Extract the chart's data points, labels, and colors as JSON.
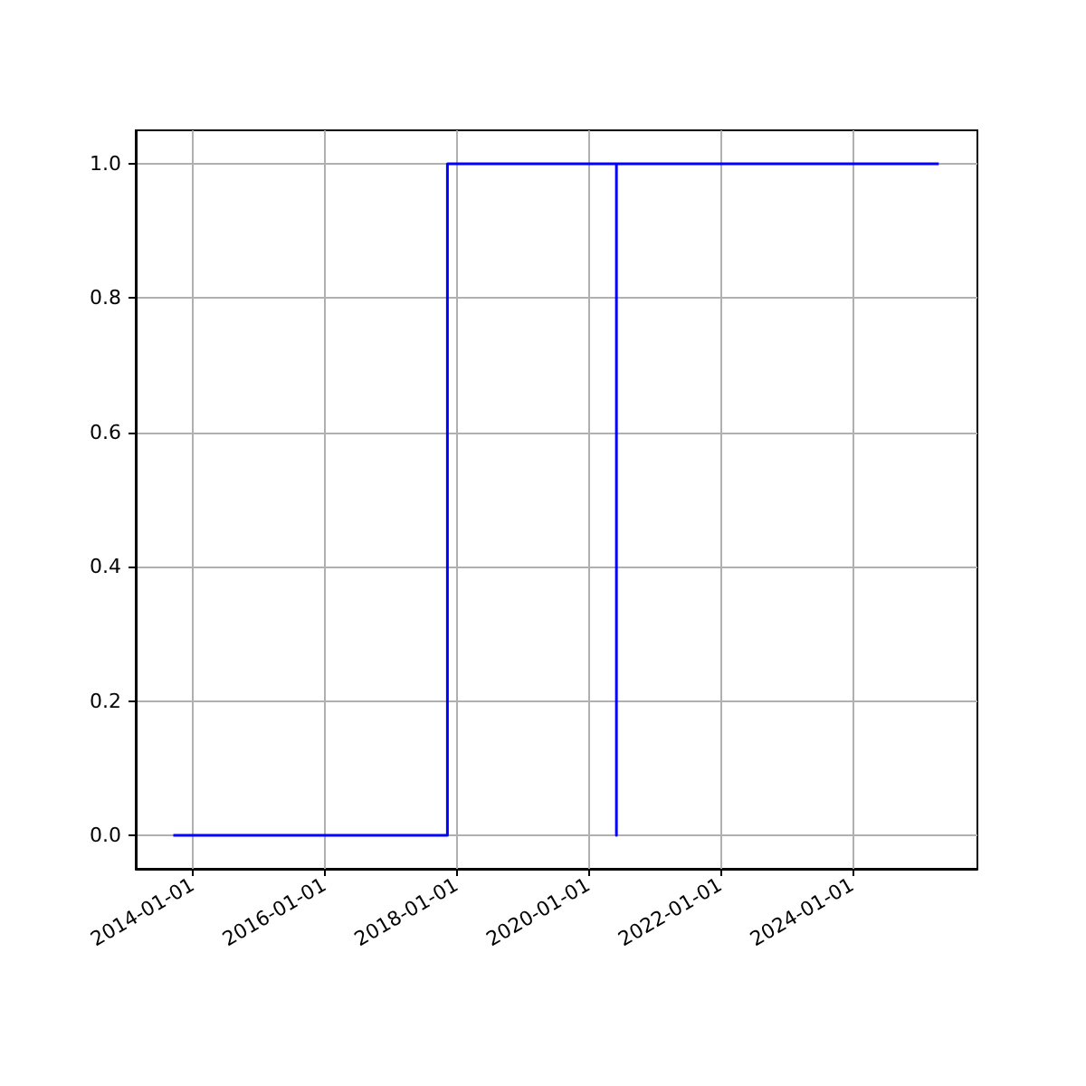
{
  "chart_data": {
    "type": "step",
    "x": [
      "2013-09-16",
      "2017-11-12",
      "2020-06-05",
      "2020-06-05",
      "2025-04-25"
    ],
    "series": [
      {
        "color": "#0000ff",
        "values": [
          0,
          1,
          0,
          1,
          1
        ]
      }
    ],
    "xlim": [
      "2013-02-20",
      "2025-11-25"
    ],
    "xticks": [
      "2014-01-01",
      "2016-01-01",
      "2018-01-01",
      "2020-01-01",
      "2022-01-01",
      "2024-01-01"
    ],
    "ylim": [
      -0.05,
      1.05
    ],
    "yticks": [
      {
        "value": 0,
        "label": "0.0"
      },
      {
        "value": 0.2,
        "label": "0.2"
      },
      {
        "value": 0.4,
        "label": "0.4"
      },
      {
        "value": 0.6,
        "label": "0.6"
      },
      {
        "value": 0.8,
        "label": "0.8"
      },
      {
        "value": 1,
        "label": "1.0"
      }
    ],
    "grid": true,
    "marker": "none",
    "line_style": "solid"
  }
}
